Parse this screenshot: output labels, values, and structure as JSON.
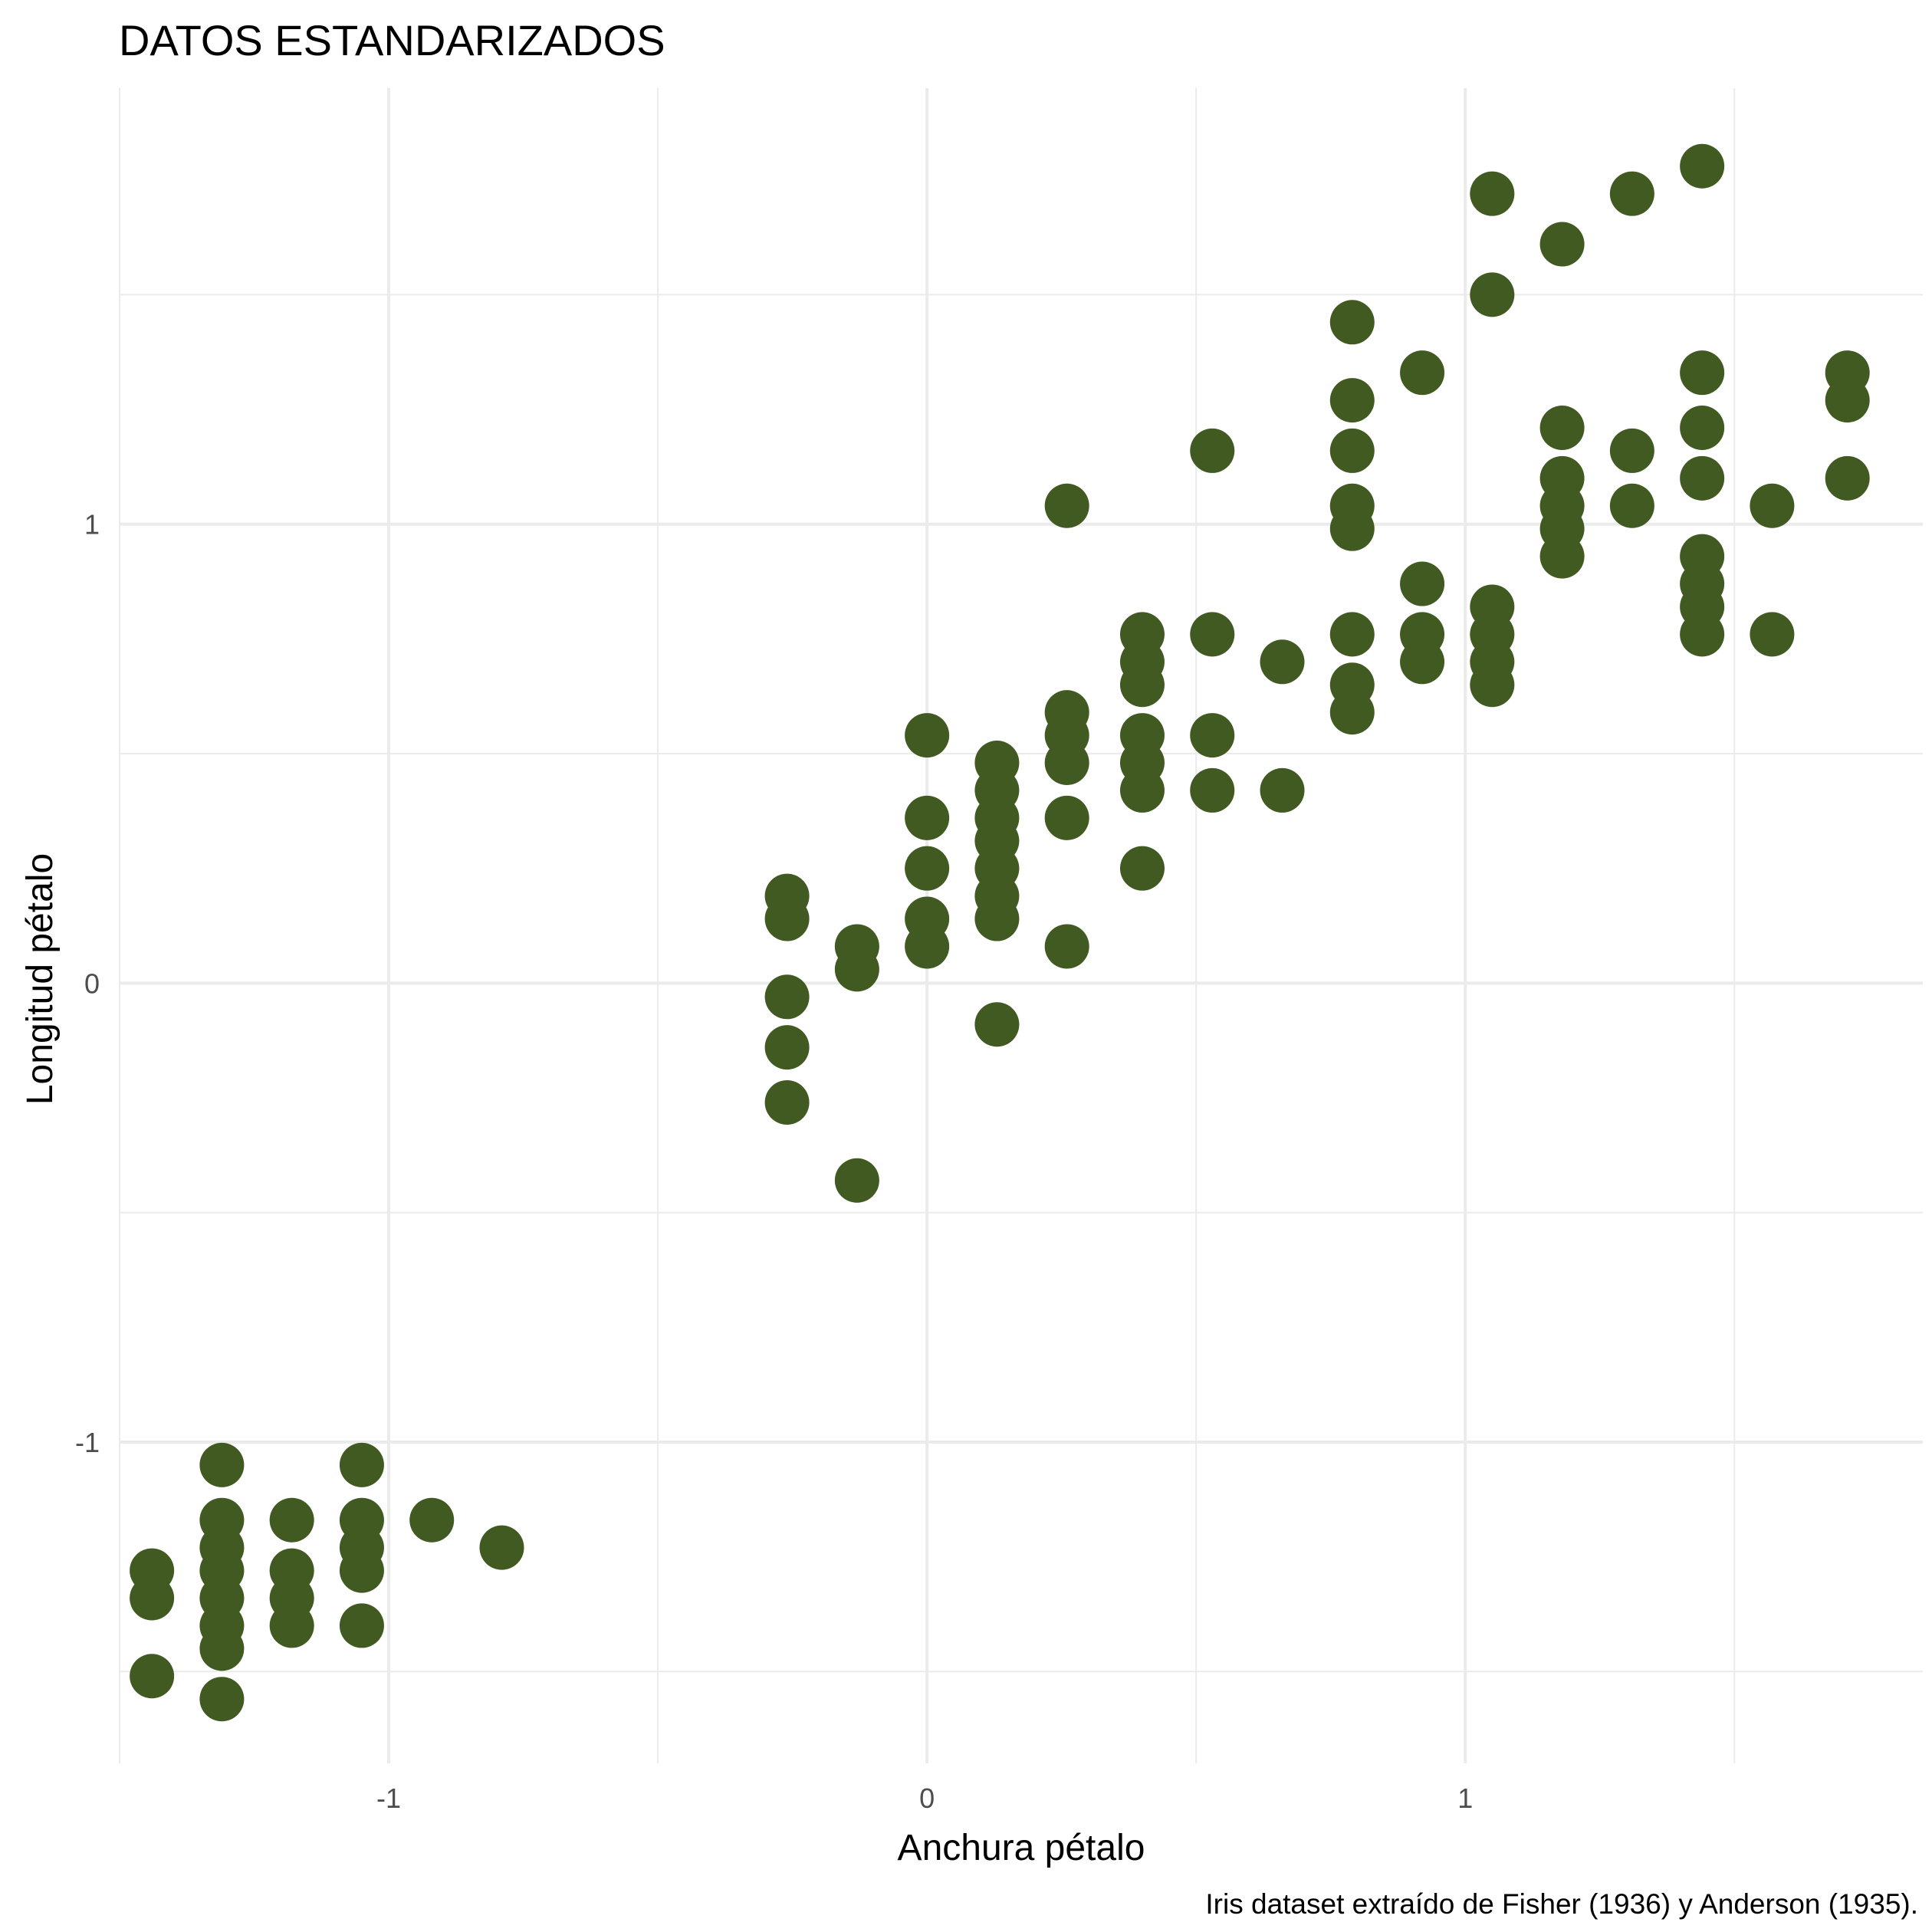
{
  "chart_data": {
    "type": "scatter",
    "title": "DATOS ESTANDARIZADOS",
    "xlabel": "Anchura pétalo",
    "ylabel": "Longitud pétalo",
    "caption": "Iris dataset extraído de Fisher (1936) y Anderson (1935).",
    "xlim": [
      -1.5,
      1.85
    ],
    "ylim": [
      -1.7,
      1.95
    ],
    "x_ticks": [
      -1,
      0,
      1
    ],
    "x_tick_labels": [
      "-1",
      "0",
      "1"
    ],
    "y_ticks": [
      -1,
      0,
      1
    ],
    "y_tick_labels": [
      "-1",
      "0",
      "1"
    ],
    "x_minor": [
      -1.5,
      -0.5,
      0.5,
      1.5
    ],
    "y_minor": [
      -1.5,
      -0.5,
      0.5,
      1.5
    ],
    "grid": true,
    "point_color": "#415a22",
    "points": [
      [
        -1.44,
        -1.28
      ],
      [
        -1.44,
        -1.34
      ],
      [
        -1.44,
        -1.51
      ],
      [
        -1.31,
        -1.05
      ],
      [
        -1.31,
        -1.17
      ],
      [
        -1.31,
        -1.23
      ],
      [
        -1.31,
        -1.28
      ],
      [
        -1.31,
        -1.34
      ],
      [
        -1.31,
        -1.4
      ],
      [
        -1.31,
        -1.45
      ],
      [
        -1.31,
        -1.56
      ],
      [
        -1.18,
        -1.17
      ],
      [
        -1.18,
        -1.28
      ],
      [
        -1.18,
        -1.34
      ],
      [
        -1.18,
        -1.4
      ],
      [
        -1.05,
        -1.05
      ],
      [
        -1.05,
        -1.17
      ],
      [
        -1.05,
        -1.23
      ],
      [
        -1.05,
        -1.28
      ],
      [
        -1.05,
        -1.4
      ],
      [
        -0.92,
        -1.17
      ],
      [
        -0.79,
        -1.23
      ],
      [
        -0.26,
        0.19
      ],
      [
        -0.26,
        0.14
      ],
      [
        -0.26,
        -0.03
      ],
      [
        -0.26,
        -0.14
      ],
      [
        -0.26,
        -0.26
      ],
      [
        -0.13,
        0.08
      ],
      [
        -0.13,
        0.03
      ],
      [
        -0.13,
        -0.43
      ],
      [
        0.0,
        0.54
      ],
      [
        0.0,
        0.36
      ],
      [
        0.0,
        0.25
      ],
      [
        0.0,
        0.14
      ],
      [
        0.0,
        0.08
      ],
      [
        0.13,
        0.48
      ],
      [
        0.13,
        0.42
      ],
      [
        0.13,
        0.36
      ],
      [
        0.13,
        0.31
      ],
      [
        0.13,
        0.25
      ],
      [
        0.13,
        0.19
      ],
      [
        0.13,
        0.14
      ],
      [
        0.13,
        -0.09
      ],
      [
        0.26,
        1.04
      ],
      [
        0.26,
        0.59
      ],
      [
        0.26,
        0.54
      ],
      [
        0.26,
        0.48
      ],
      [
        0.26,
        0.36
      ],
      [
        0.26,
        0.08
      ],
      [
        0.4,
        0.76
      ],
      [
        0.4,
        0.7
      ],
      [
        0.4,
        0.65
      ],
      [
        0.4,
        0.54
      ],
      [
        0.4,
        0.48
      ],
      [
        0.4,
        0.42
      ],
      [
        0.4,
        0.25
      ],
      [
        0.53,
        1.16
      ],
      [
        0.53,
        0.76
      ],
      [
        0.53,
        0.54
      ],
      [
        0.53,
        0.42
      ],
      [
        0.66,
        0.7
      ],
      [
        0.66,
        0.42
      ],
      [
        0.79,
        1.44
      ],
      [
        0.79,
        1.27
      ],
      [
        0.79,
        1.16
      ],
      [
        0.79,
        1.04
      ],
      [
        0.79,
        0.99
      ],
      [
        0.79,
        0.76
      ],
      [
        0.79,
        0.65
      ],
      [
        0.79,
        0.59
      ],
      [
        0.92,
        1.33
      ],
      [
        0.92,
        0.87
      ],
      [
        0.92,
        0.76
      ],
      [
        0.92,
        0.7
      ],
      [
        1.05,
        1.72
      ],
      [
        1.05,
        1.5
      ],
      [
        1.05,
        0.82
      ],
      [
        1.05,
        0.76
      ],
      [
        1.05,
        0.7
      ],
      [
        1.05,
        0.65
      ],
      [
        1.18,
        1.61
      ],
      [
        1.18,
        1.21
      ],
      [
        1.18,
        1.1
      ],
      [
        1.18,
        1.04
      ],
      [
        1.18,
        0.99
      ],
      [
        1.18,
        0.93
      ],
      [
        1.31,
        1.72
      ],
      [
        1.31,
        1.16
      ],
      [
        1.31,
        1.04
      ],
      [
        1.44,
        1.78
      ],
      [
        1.44,
        1.33
      ],
      [
        1.44,
        1.21
      ],
      [
        1.44,
        1.1
      ],
      [
        1.44,
        0.93
      ],
      [
        1.44,
        0.87
      ],
      [
        1.44,
        0.82
      ],
      [
        1.44,
        0.76
      ],
      [
        1.57,
        1.04
      ],
      [
        1.57,
        0.76
      ],
      [
        1.71,
        1.33
      ],
      [
        1.71,
        1.27
      ],
      [
        1.71,
        1.1
      ]
    ]
  }
}
